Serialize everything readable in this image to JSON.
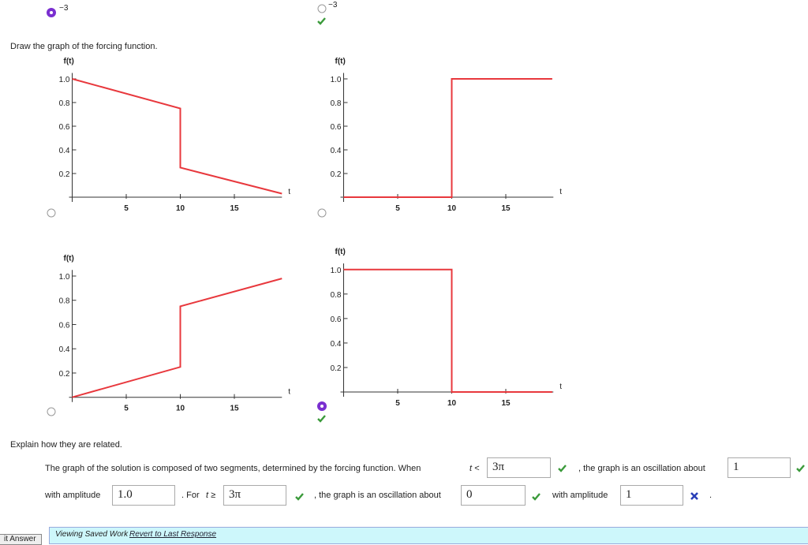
{
  "options_top": [
    "−3",
    "−3"
  ],
  "prompt": "Draw the graph of the forcing function.",
  "chart_data": [
    {
      "type": "line",
      "ylabel": "f(t)",
      "xlabel": "t",
      "x": [
        0,
        10,
        10,
        19.4
      ],
      "series": [
        {
          "color": "#e8383d",
          "values": [
            1.0,
            0.75,
            0.25,
            0.03
          ]
        }
      ],
      "xlim": [
        0,
        19.4
      ],
      "ylim": [
        0,
        1.05
      ],
      "xticks": [
        5,
        10,
        15
      ],
      "yticks": [
        0.2,
        0.4,
        0.6,
        0.8,
        {
          "value": 1,
          "label": "1.0"
        }
      ]
    },
    {
      "type": "line",
      "ylabel": "f(t)",
      "xlabel": "t",
      "x": [
        0,
        10,
        10,
        19.3
      ],
      "series": [
        {
          "color": "#e8383d",
          "values": [
            0,
            0,
            1,
            1
          ]
        }
      ],
      "xlim": [
        0,
        19.4
      ],
      "ylim": [
        0,
        1.05
      ],
      "xticks": [
        5,
        10,
        15
      ],
      "yticks": [
        0.2,
        0.4,
        0.6,
        0.8,
        {
          "value": 1,
          "label": "1.0"
        }
      ]
    },
    {
      "type": "line",
      "ylabel": "f(t)",
      "xlabel": "t",
      "x": [
        0,
        10,
        10,
        19.4
      ],
      "series": [
        {
          "color": "#e8383d",
          "values": [
            0,
            0.25,
            0.75,
            0.98
          ]
        }
      ],
      "xlim": [
        0,
        19.4
      ],
      "ylim": [
        0,
        1.05
      ],
      "xticks": [
        5,
        10,
        15
      ],
      "yticks": [
        0.2,
        0.4,
        0.6,
        0.8,
        {
          "value": 1,
          "label": "1.0"
        }
      ]
    },
    {
      "type": "line",
      "ylabel": "f(t)",
      "xlabel": "t",
      "x": [
        0,
        10,
        10,
        19.3
      ],
      "series": [
        {
          "color": "#e8383d",
          "values": [
            1,
            1,
            0,
            0
          ]
        }
      ],
      "xlim": [
        0,
        19.4
      ],
      "ylim": [
        0,
        1.05
      ],
      "xticks": [
        5,
        10,
        15
      ],
      "yticks": [
        0.2,
        0.4,
        0.6,
        0.8,
        {
          "value": 1,
          "label": "1.0"
        }
      ]
    }
  ],
  "explain": "Explain how they are related.",
  "sentence": {
    "part1": "The graph of the solution is composed of two segments, determined by the forcing function. When",
    "cond1": "t <",
    "input1": "3π",
    "part2": ", the graph is an oscillation about",
    "input2": "1",
    "part3": "with amplitude",
    "input3": "1.0",
    "part4": ". For",
    "cond2": "t ≥",
    "input4": "3π",
    "part5": ", the graph is an oscillation about",
    "input5": "0",
    "part6": "with amplitude",
    "input6": "1",
    "end": "."
  },
  "footer": {
    "button": "it Answer",
    "status": "Viewing Saved Work",
    "link": "Revert to Last Response"
  }
}
